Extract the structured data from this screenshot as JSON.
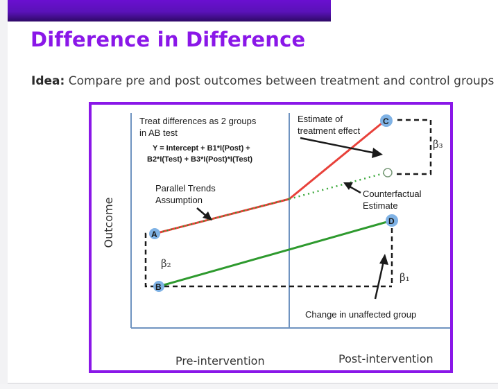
{
  "header": {
    "title": "Difference in Difference",
    "idea_label": "Idea:",
    "idea_text": " Compare pre and post outcomes between treatment and control groups"
  },
  "diagram": {
    "note_ab_line1": "Treat differences as 2 groups",
    "note_ab_line2": "in AB test",
    "equation_line1": "Y = Intercept + B1*I(Post) +",
    "equation_line2": "B2*I(Test) + B3*I(Post)*I(Test)",
    "parallel_line1": "Parallel Trends",
    "parallel_line2": "Assumption",
    "estimate_line1": "Estimate of",
    "estimate_line2": "treatment effect",
    "counterfactual_line1": "Counterfactual",
    "counterfactual_line2": "Estimate",
    "unaffected_label": "Change in unaffected group",
    "y_axis_label": "Outcome",
    "x_label_pre": "Pre-intervention",
    "x_label_post": "Post-intervention",
    "beta1": "β₁",
    "beta2": "β₂",
    "beta3": "β₃",
    "points": {
      "a": "A",
      "b": "B",
      "c": "C",
      "d": "D"
    },
    "colors": {
      "treatment": "#e8413a",
      "control": "#2e9a2e",
      "counterfactual": "#3aa83a",
      "point_fill": "#7fb2e5",
      "axis": "#6f93c0",
      "accent": "#8a17e8"
    }
  }
}
